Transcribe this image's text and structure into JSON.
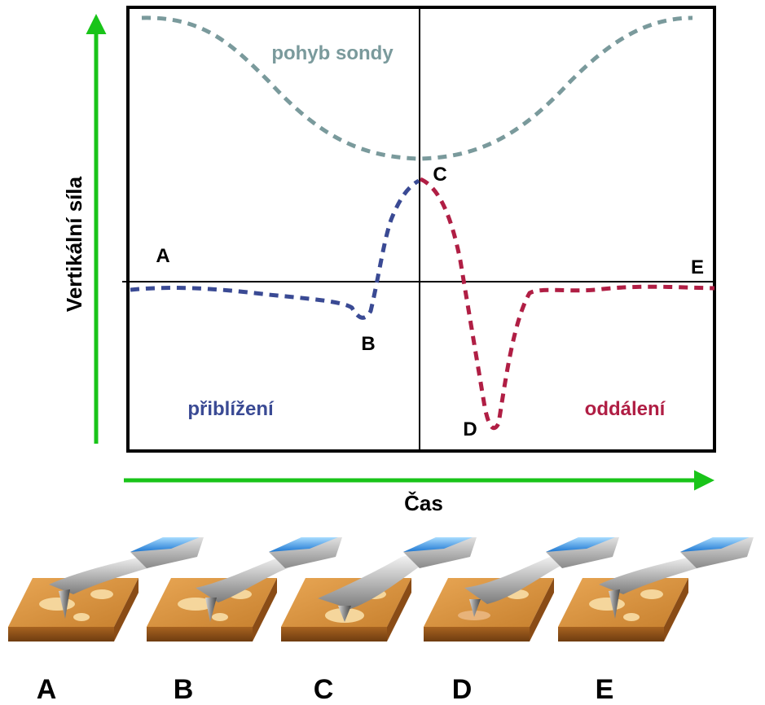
{
  "colors": {
    "axis_arrow": "#19c419",
    "frame": "#000000",
    "probe_motion": "#7a9a9c",
    "approach": "#3a4a94",
    "retract": "#b01e44"
  },
  "axes": {
    "y_label": "Vertikální síla",
    "x_label": "Čas"
  },
  "curves": {
    "probe_motion_label": "pohyb sondy",
    "approach_label": "přiblížení",
    "retract_label": "oddálení"
  },
  "points": {
    "A": "A",
    "B": "B",
    "C": "C",
    "D": "D",
    "E": "E"
  },
  "stages": [
    {
      "label": "A",
      "state": "above-surface"
    },
    {
      "label": "B",
      "state": "snap-in"
    },
    {
      "label": "C",
      "state": "pressing"
    },
    {
      "label": "D",
      "state": "adhesion"
    },
    {
      "label": "E",
      "state": "released"
    }
  ]
}
